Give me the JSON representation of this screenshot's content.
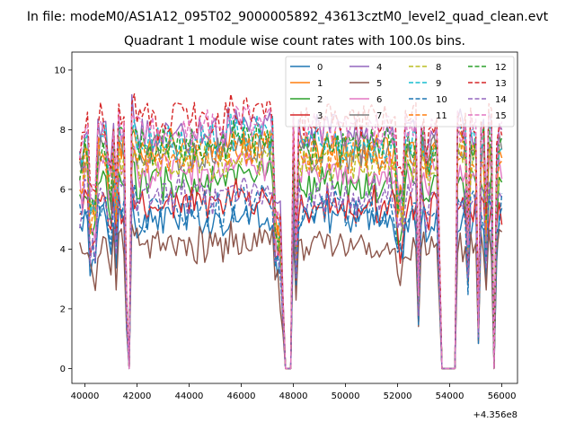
{
  "figure": {
    "suptitle": "In file: modeM0/AS1A12_095T02_9000005892_43613cztM0_level2_quad_clean.evt",
    "background": "#ffffff"
  },
  "chart_data": {
    "type": "line",
    "title": "Quadrant 1 module wise count rates with 100.0s bins.",
    "xlabel": "",
    "ylabel": "",
    "x_offset_label": "+4.356e8",
    "xlim": [
      39500,
      56600
    ],
    "ylim": [
      -0.5,
      10.6
    ],
    "xticks": [
      40000,
      42000,
      44000,
      46000,
      48000,
      50000,
      52000,
      54000,
      56000
    ],
    "xtick_labels": [
      "40000",
      "42000",
      "44000",
      "46000",
      "48000",
      "50000",
      "52000",
      "54000",
      "56000"
    ],
    "yticks": [
      0,
      2,
      4,
      6,
      8,
      10
    ],
    "ytick_labels": [
      "0",
      "2",
      "4",
      "6",
      "8",
      "10"
    ],
    "legend_location": "upper-right",
    "legend_columns": 4,
    "x_range": {
      "start": 39800,
      "stop": 56000,
      "step": 100
    },
    "profile_notes": "Per-module count rates (counts/s). Gaps with ~0 rate near 41700, 47600-48000, 53600-54200, 55700; dips near 41200, 52800, 55100.",
    "series": [
      {
        "name": "0",
        "color": "#1f77b4",
        "linestyle": "solid",
        "level": 5.0
      },
      {
        "name": "1",
        "color": "#ff7f0e",
        "linestyle": "solid",
        "level": 7.4
      },
      {
        "name": "2",
        "color": "#2ca02c",
        "linestyle": "solid",
        "level": 6.2
      },
      {
        "name": "3",
        "color": "#d62728",
        "linestyle": "solid",
        "level": 5.5
      },
      {
        "name": "4",
        "color": "#9467bd",
        "linestyle": "solid",
        "level": 7.9
      },
      {
        "name": "5",
        "color": "#8c564b",
        "linestyle": "solid",
        "level": 4.1
      },
      {
        "name": "6",
        "color": "#e377c2",
        "linestyle": "solid",
        "level": 6.6
      },
      {
        "name": "7",
        "color": "#7f7f7f",
        "linestyle": "solid",
        "level": 7.2
      },
      {
        "name": "8",
        "color": "#bcbd22",
        "linestyle": "dashed",
        "level": 6.9
      },
      {
        "name": "9",
        "color": "#17becf",
        "linestyle": "dashed",
        "level": 7.6
      },
      {
        "name": "10",
        "color": "#1f77b4",
        "linestyle": "dashed",
        "level": 5.3
      },
      {
        "name": "11",
        "color": "#ff7f0e",
        "linestyle": "dashed",
        "level": 7.1
      },
      {
        "name": "12",
        "color": "#2ca02c",
        "linestyle": "dashed",
        "level": 7.5
      },
      {
        "name": "13",
        "color": "#d62728",
        "linestyle": "dashed",
        "level": 8.3
      },
      {
        "name": "14",
        "color": "#9467bd",
        "linestyle": "dashed",
        "level": 5.8
      },
      {
        "name": "15",
        "color": "#e377c2",
        "linestyle": "dashed",
        "level": 8.0
      }
    ]
  }
}
